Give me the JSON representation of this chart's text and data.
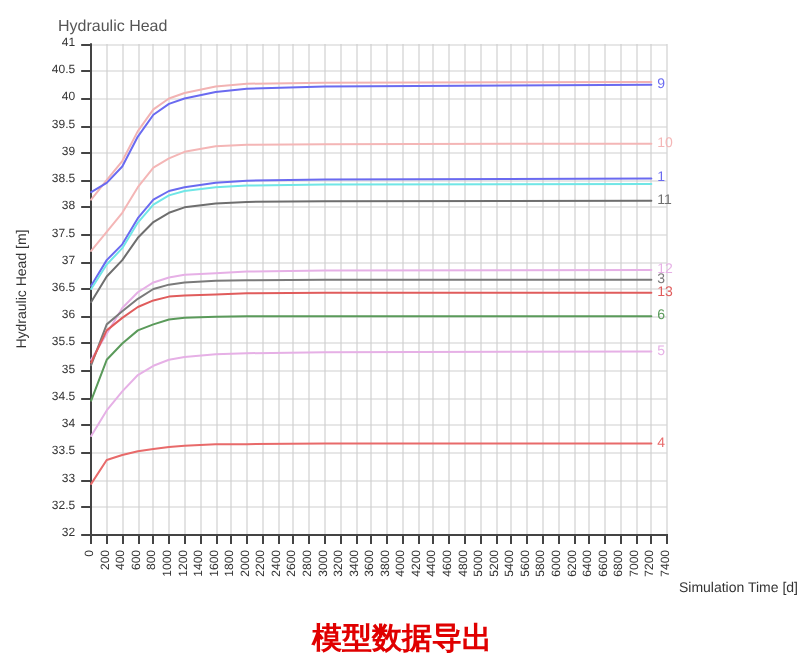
{
  "chart_data": {
    "type": "line",
    "title": "Hydraulic Head",
    "xlabel": "Simulation Time [d]",
    "ylabel": "Hydraulic Head [m]",
    "x": [
      0,
      200,
      400,
      600,
      800,
      1000,
      1200,
      1600,
      2000,
      3000,
      7200
    ],
    "series": [
      {
        "color": "#f2b3b3",
        "values": [
          38.14,
          38.5,
          38.85,
          39.4,
          39.8,
          40.0,
          40.1,
          40.22,
          40.27,
          40.29,
          40.3
        ]
      },
      {
        "name": "9",
        "color": "#6a6af0",
        "values": [
          38.28,
          38.45,
          38.75,
          39.3,
          39.7,
          39.9,
          40.0,
          40.12,
          40.18,
          40.22,
          40.25
        ]
      },
      {
        "name": "10",
        "color": "#f4b6b6",
        "values": [
          37.2,
          37.55,
          37.9,
          38.37,
          38.73,
          38.9,
          39.02,
          39.12,
          39.15,
          39.16,
          39.17
        ]
      },
      {
        "name": "1",
        "color": "#6a6af0",
        "values": [
          36.56,
          37.03,
          37.32,
          37.8,
          38.14,
          38.3,
          38.37,
          38.45,
          38.49,
          38.51,
          38.53
        ]
      },
      {
        "color": "#70e6e6",
        "values": [
          36.5,
          36.95,
          37.25,
          37.72,
          38.05,
          38.22,
          38.3,
          38.37,
          38.4,
          38.42,
          38.43
        ]
      },
      {
        "name": "11",
        "color": "#6e6e6e",
        "values": [
          36.26,
          36.73,
          37.03,
          37.44,
          37.73,
          37.9,
          38.0,
          38.07,
          38.1,
          38.11,
          38.12
        ]
      },
      {
        "name": "12",
        "color": "#e6b0e6",
        "values": [
          35.2,
          35.68,
          36.15,
          36.44,
          36.62,
          36.71,
          36.76,
          36.79,
          36.82,
          36.84,
          36.85
        ]
      },
      {
        "name": "3",
        "color": "#7a7a7a",
        "values": [
          35.1,
          35.85,
          36.09,
          36.32,
          36.5,
          36.58,
          36.62,
          36.65,
          36.66,
          36.67,
          36.67
        ]
      },
      {
        "name": "13",
        "color": "#e05c5c",
        "values": [
          35.15,
          35.74,
          35.97,
          36.17,
          36.29,
          36.36,
          36.38,
          36.4,
          36.42,
          36.43,
          36.43
        ]
      },
      {
        "name": "6",
        "color": "#5a9a5a",
        "values": [
          34.45,
          35.2,
          35.5,
          35.74,
          35.85,
          35.94,
          35.97,
          35.99,
          36.0,
          36.0,
          36.0
        ]
      },
      {
        "name": "5",
        "color": "#e6b0e6",
        "values": [
          33.8,
          34.27,
          34.62,
          34.92,
          35.09,
          35.2,
          35.25,
          35.3,
          35.32,
          35.34,
          35.35
        ]
      },
      {
        "name": "4",
        "color": "#e86a6a",
        "values": [
          32.92,
          33.36,
          33.45,
          33.52,
          33.56,
          33.6,
          33.62,
          33.65,
          33.65,
          33.66,
          33.66
        ]
      }
    ],
    "xlim": [
      0,
      7400
    ],
    "xticks": [
      0,
      200,
      400,
      600,
      800,
      1000,
      1200,
      1400,
      1600,
      1800,
      2000,
      2200,
      2400,
      2600,
      2800,
      3000,
      3200,
      3400,
      3600,
      3800,
      4000,
      4200,
      4400,
      4600,
      4800,
      5000,
      5200,
      5400,
      5600,
      5800,
      6000,
      6200,
      6400,
      6600,
      6800,
      7000,
      7200,
      7400
    ],
    "ylim": [
      32,
      41
    ],
    "yticks": [
      32,
      32.5,
      33,
      33.5,
      34,
      34.5,
      35,
      35.5,
      36,
      36.5,
      37,
      37.5,
      38,
      38.5,
      39,
      39.5,
      40,
      40.5,
      41
    ],
    "grid": true,
    "legend": false,
    "marker": "none",
    "line_style": "solid",
    "annotations": [
      "模型数据导出"
    ]
  }
}
